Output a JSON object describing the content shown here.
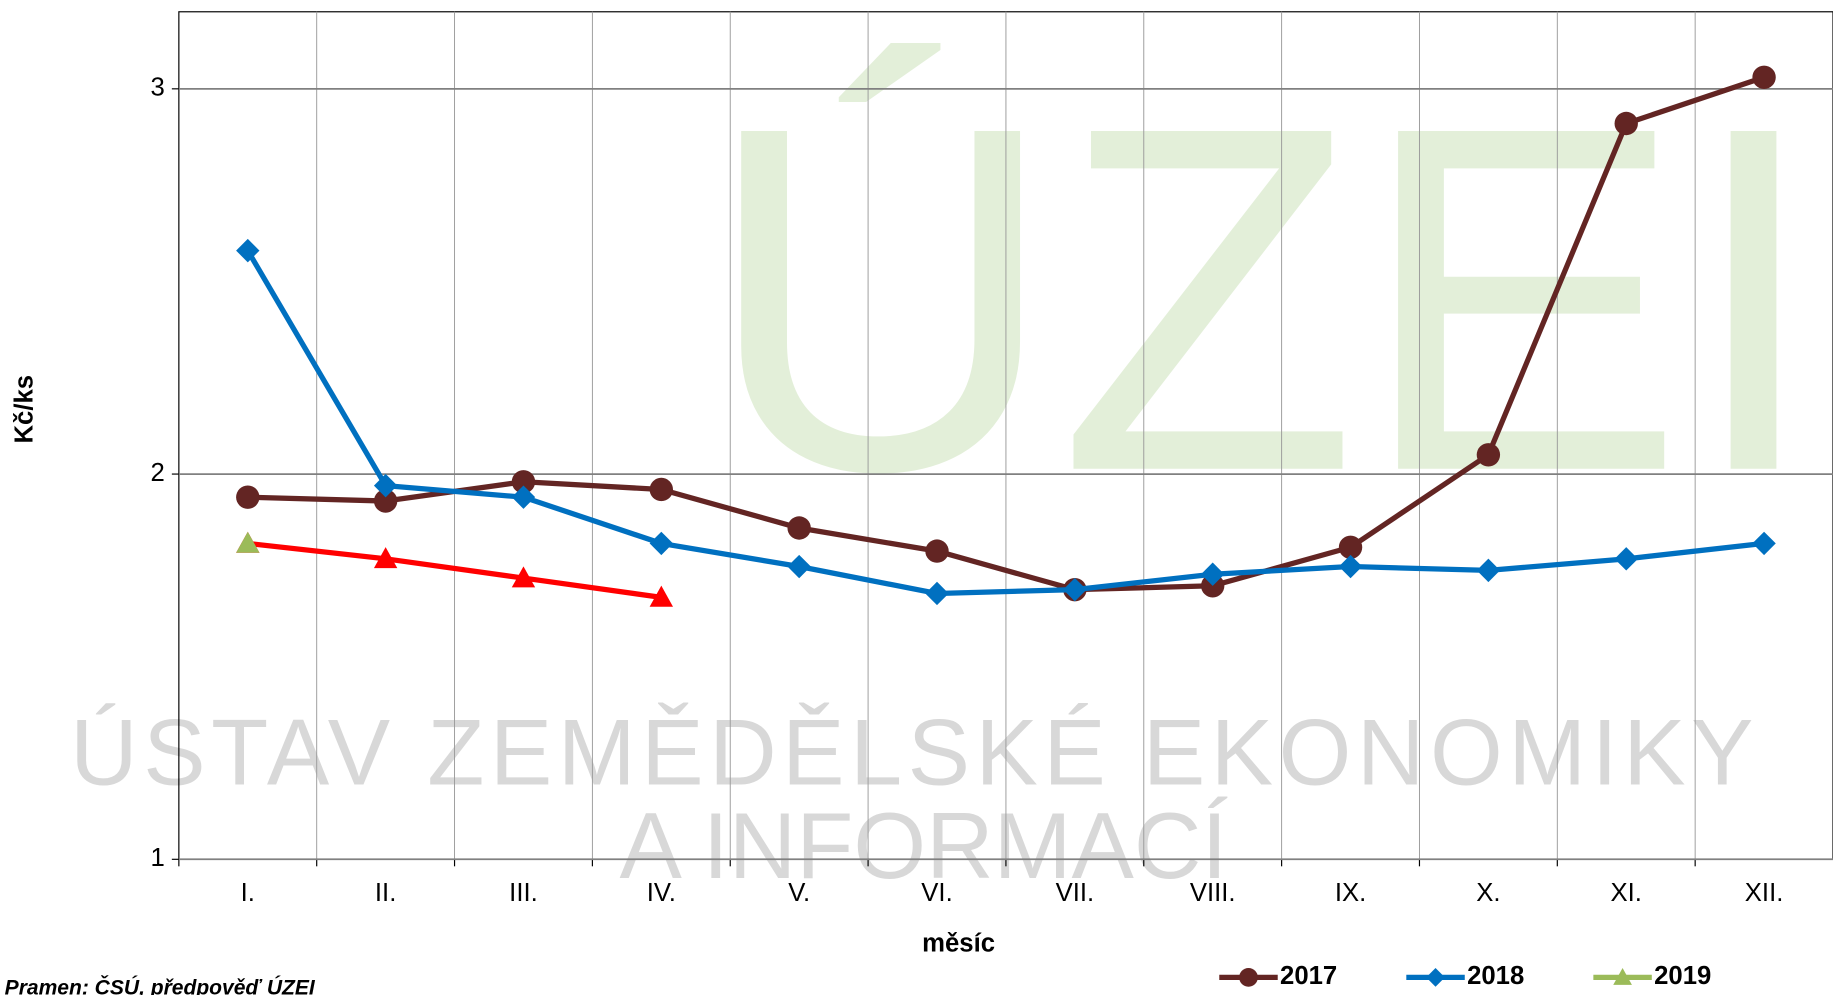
{
  "chart_data": {
    "type": "line",
    "watermark": [
      "ÚZEI",
      "ÚSTAV ZEMĚDĚLSKÉ EKONOMIKY",
      "A INFORMACÍ"
    ],
    "x_label": "měsíc",
    "y_label": "Kč/ks",
    "source": "Pramen: ČSÚ, předpověď ÚZEI",
    "categories": [
      "I.",
      "II.",
      "III.",
      "IV.",
      "V.",
      "VI.",
      "VII.",
      "VIII.",
      "IX.",
      "X.",
      "XI.",
      "XII."
    ],
    "series": [
      {
        "name": "2017",
        "color": "#632523",
        "marker": "circle",
        "values": [
          1.94,
          1.93,
          1.98,
          1.96,
          1.86,
          1.8,
          1.7,
          1.71,
          1.81,
          2.05,
          2.91,
          3.03
        ]
      },
      {
        "name": "2018",
        "color": "#0070c0",
        "marker": "diamond",
        "values": [
          2.58,
          1.97,
          1.94,
          1.82,
          1.76,
          1.69,
          1.7,
          1.74,
          1.76,
          1.75,
          1.78,
          1.82
        ]
      },
      {
        "color": "#ff0000",
        "marker": "triangle",
        "values": [
          1.82,
          1.78,
          1.73,
          1.68,
          null,
          null,
          null,
          null,
          null,
          null,
          null,
          null
        ]
      },
      {
        "name": "2019",
        "color": "#9bbb59",
        "marker": "triangle",
        "values": [
          1.82,
          null,
          null,
          null,
          null,
          null,
          null,
          null,
          null,
          null,
          null,
          null
        ]
      }
    ],
    "ylim": [
      1,
      3.2
    ],
    "yticks": [
      1,
      2,
      3
    ],
    "grid": true
  }
}
